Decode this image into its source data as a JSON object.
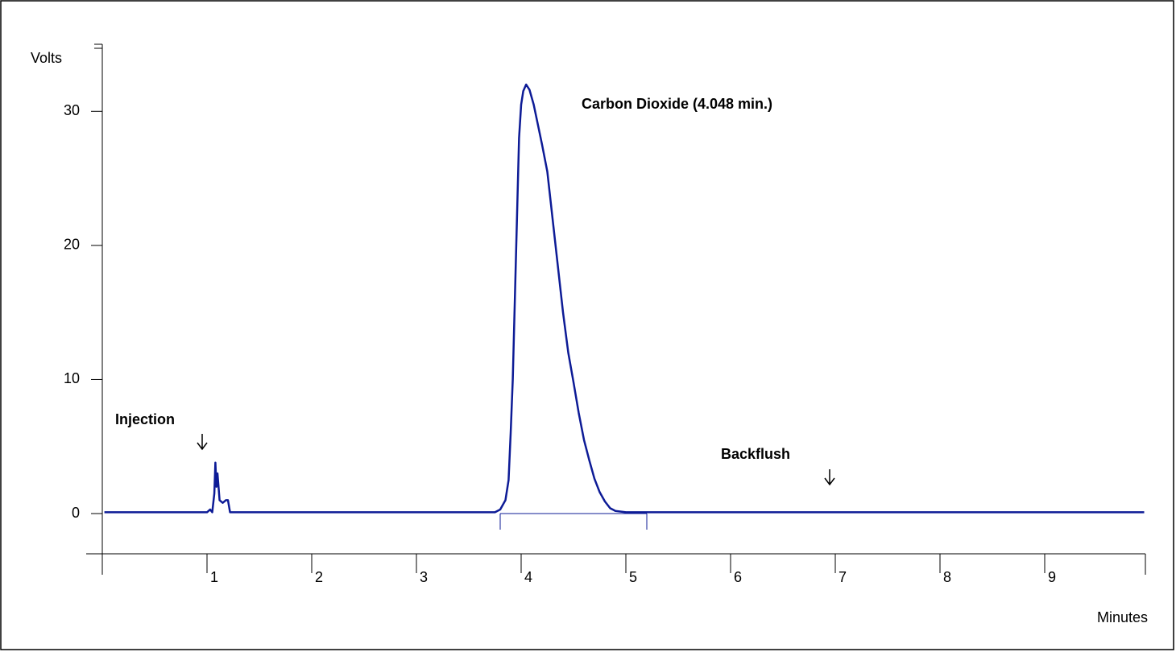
{
  "chart_data": {
    "type": "line",
    "x_label": "Minutes",
    "y_label": "Volts",
    "x": [
      0.02,
      0.5,
      1.0,
      1.03,
      1.05,
      1.07,
      1.08,
      1.09,
      1.1,
      1.12,
      1.15,
      1.18,
      1.2,
      1.22,
      1.25,
      2.0,
      3.0,
      3.75,
      3.8,
      3.85,
      3.88,
      3.9,
      3.92,
      3.94,
      3.96,
      3.98,
      4.0,
      4.02,
      4.048,
      4.08,
      4.12,
      4.16,
      4.2,
      4.25,
      4.3,
      4.35,
      4.4,
      4.45,
      4.5,
      4.55,
      4.6,
      4.65,
      4.7,
      4.75,
      4.8,
      4.85,
      4.9,
      5.0,
      6.0,
      8.0,
      9.95
    ],
    "y": [
      0.1,
      0.1,
      0.1,
      0.3,
      0.1,
      1.5,
      3.8,
      2.0,
      3.0,
      1.0,
      0.8,
      1.0,
      1.0,
      0.1,
      0.1,
      0.1,
      0.1,
      0.1,
      0.3,
      1.0,
      2.5,
      6,
      10,
      16,
      22,
      28,
      30.5,
      31.5,
      32,
      31.6,
      30.5,
      29,
      27.5,
      25.5,
      22,
      18.5,
      15,
      12,
      9.8,
      7.5,
      5.5,
      4.0,
      2.6,
      1.6,
      0.9,
      0.4,
      0.2,
      0.1,
      0.1,
      0.1,
      0.1
    ],
    "color": "#0d1b96",
    "xlim": [
      0,
      10
    ],
    "ylim": [
      -3,
      35
    ],
    "xticks": [
      1,
      2,
      3,
      4,
      5,
      6,
      7,
      8,
      9
    ],
    "yticks": [
      0,
      10,
      20,
      30
    ],
    "baseline_marks": [
      3.8,
      5.2
    ],
    "annotations": [
      "Injection",
      "Carbon Dioxide (4.048 min.)",
      "Backflush"
    ]
  }
}
